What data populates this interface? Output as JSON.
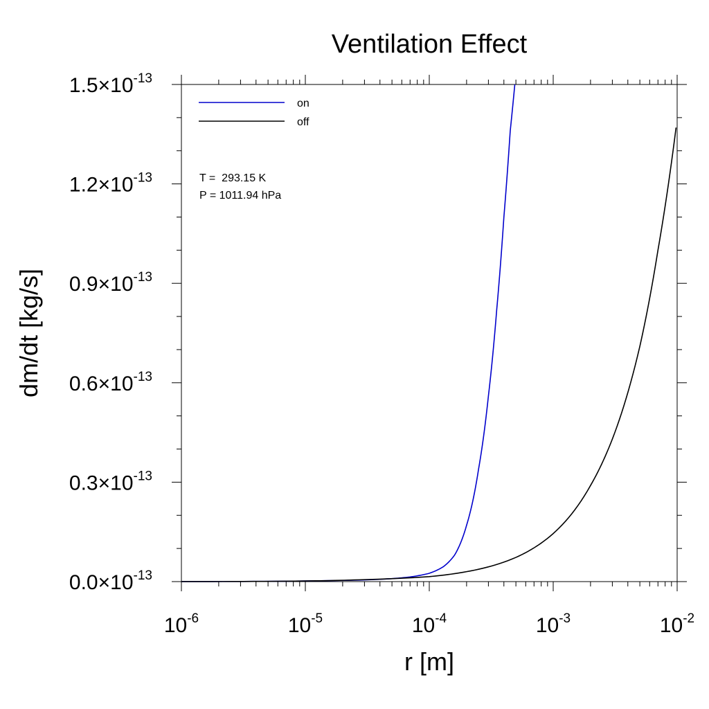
{
  "chart_data": {
    "type": "line",
    "title": "Ventilation Effect",
    "xlabel": "r [m]",
    "ylabel": "dm/dt [kg/s]",
    "x_scale": "log",
    "xlim": [
      1e-06,
      0.01
    ],
    "ylim": [
      0,
      1.5e-13
    ],
    "x_ticks": [
      {
        "base": "10",
        "exp": "-6"
      },
      {
        "base": "10",
        "exp": "-5"
      },
      {
        "base": "10",
        "exp": "-4"
      },
      {
        "base": "10",
        "exp": "-3"
      },
      {
        "base": "10",
        "exp": "-2"
      }
    ],
    "y_ticks": [
      {
        "mant": "0.0",
        "times": "×",
        "base": "10",
        "exp": "-13"
      },
      {
        "mant": "0.3",
        "times": "×",
        "base": "10",
        "exp": "-13"
      },
      {
        "mant": "0.6",
        "times": "×",
        "base": "10",
        "exp": "-13"
      },
      {
        "mant": "0.9",
        "times": "×",
        "base": "10",
        "exp": "-13"
      },
      {
        "mant": "1.2",
        "times": "×",
        "base": "10",
        "exp": "-13"
      },
      {
        "mant": "1.5",
        "times": "×",
        "base": "10",
        "exp": "-13"
      }
    ],
    "grid": false,
    "legend_position": "top-left",
    "series": [
      {
        "name": "on",
        "color": "#0000cc",
        "x": [
          1e-06,
          1e-05,
          3e-05,
          5e-05,
          7e-05,
          0.0001,
          0.00013,
          0.00016,
          0.0002,
          0.00025,
          0.0003,
          0.00035,
          0.0004,
          0.00045,
          0.00049
        ],
        "y": [
          1e-17,
          2e-16,
          5e-16,
          9e-16,
          1.4e-15,
          2.5e-15,
          4.5e-15,
          8e-15,
          1.7e-14,
          3.4e-14,
          5.6e-14,
          8.2e-14,
          1.1e-13,
          1.36e-13,
          1.5e-13
        ]
      },
      {
        "name": "off",
        "color": "#000000",
        "x": [
          1e-06,
          1e-05,
          3e-05,
          0.0001,
          0.0002,
          0.0005,
          0.001,
          0.002,
          0.003,
          0.005,
          0.007,
          0.0098
        ],
        "y": [
          1e-17,
          2e-16,
          6e-16,
          1.5e-15,
          3e-15,
          7.3e-15,
          1.45e-14,
          2.9e-14,
          4.3e-14,
          7.1e-14,
          1e-13,
          1.37e-13
        ]
      }
    ],
    "annotations": [
      "T =  293.15 K",
      "P = 1011.94 hPa"
    ]
  }
}
